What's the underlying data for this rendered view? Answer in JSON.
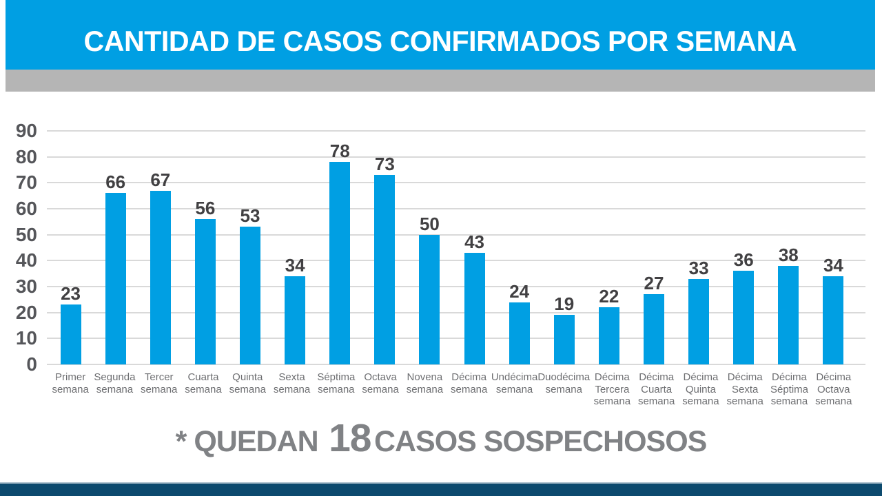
{
  "header": {
    "title": "CANTIDAD DE CASOS CONFIRMADOS POR SEMANA",
    "background_color": "#009FE3",
    "text_color": "#FFFFFF"
  },
  "chart_data": {
    "type": "bar",
    "title": "CANTIDAD DE CASOS CONFIRMADOS POR SEMANA",
    "categories": [
      "Primer semana",
      "Segunda semana",
      "Tercer semana",
      "Cuarta semana",
      "Quinta semana",
      "Sexta semana",
      "Séptima semana",
      "Octava semana",
      "Novena semana",
      "Décima semana",
      "Undécima semana",
      "Duodécima semana",
      "Décima Tercera semana",
      "Décima Cuarta semana",
      "Décima Quinta semana",
      "Décima Sexta semana",
      "Décima Séptima semana",
      "Décima Octava semana"
    ],
    "category_lines": [
      [
        "Primer",
        "semana"
      ],
      [
        "Segunda",
        "semana"
      ],
      [
        "Tercer",
        "semana"
      ],
      [
        "Cuarta",
        "semana"
      ],
      [
        "Quinta",
        "semana"
      ],
      [
        "Sexta",
        "semana"
      ],
      [
        "Séptima",
        "semana"
      ],
      [
        "Octava",
        "semana"
      ],
      [
        "Novena",
        "semana"
      ],
      [
        "Décima",
        "semana"
      ],
      [
        "Undécima",
        "semana"
      ],
      [
        "Duodécima",
        "semana"
      ],
      [
        "Décima",
        "Tercera",
        "semana"
      ],
      [
        "Décima",
        "Cuarta",
        "semana"
      ],
      [
        "Décima",
        "Quinta",
        "semana"
      ],
      [
        "Décima",
        "Sexta",
        "semana"
      ],
      [
        "Décima",
        "Séptima",
        "semana"
      ],
      [
        "Décima",
        "Octava",
        "semana"
      ]
    ],
    "values": [
      23,
      66,
      67,
      56,
      53,
      34,
      78,
      73,
      50,
      43,
      24,
      19,
      22,
      27,
      33,
      36,
      38,
      34
    ],
    "value_labels_shown": true,
    "xlabel": "",
    "ylabel": "",
    "ylim": [
      0,
      90
    ],
    "yticks": [
      0,
      10,
      20,
      30,
      40,
      50,
      60,
      70,
      80,
      90
    ],
    "grid": "horizontal",
    "legend": "none",
    "bar_color": "#009FE3",
    "gridline_color": "#D9D9D9",
    "tick_label_color": "#55565A",
    "value_label_color": "#414042",
    "category_label_color": "#6D6E71"
  },
  "footer": {
    "note_prefix": "* QUEDAN",
    "note_number": "18",
    "note_suffix": "CASOS SOSPECHOSOS",
    "text_color": "#808285"
  },
  "bands": {
    "gray_band_color": "#B5B5B5",
    "bottom_band_color": "#0D4A6E"
  }
}
